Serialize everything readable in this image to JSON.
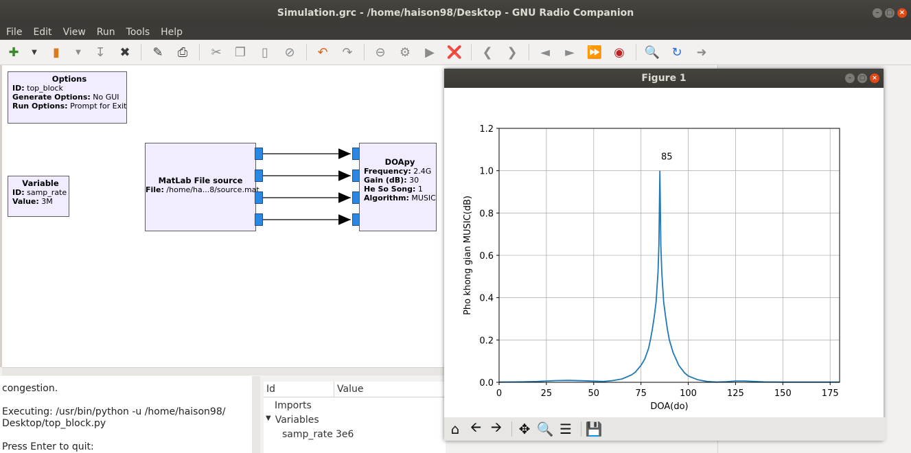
{
  "window": {
    "title": "Simulation.grc - /home/haison98/Desktop - GNU Radio Companion"
  },
  "menu": [
    "File",
    "Edit",
    "View",
    "Run",
    "Tools",
    "Help"
  ],
  "blocks": {
    "options": {
      "title": "Options",
      "id_label": "ID:",
      "id_value": "top_block",
      "gen_label": "Generate Options:",
      "gen_value": "No GUI",
      "run_label": "Run Options:",
      "run_value": "Prompt for Exit"
    },
    "variable": {
      "title": "Variable",
      "id_label": "ID:",
      "id_value": "samp_rate",
      "val_label": "Value:",
      "val_value": "3M"
    },
    "matlab": {
      "title": "MatLab File source",
      "file_label": "File:",
      "file_value": "/home/ha...8/source.mat"
    },
    "doapy": {
      "title": "DOApy",
      "freq_label": "Frequency:",
      "freq_value": "2.4G",
      "gain_label": "Gain (dB):",
      "gain_value": "30",
      "heso_label": "He So Song:",
      "heso_value": "1",
      "algo_label": "Algorithm:",
      "algo_value": "MUSIC"
    }
  },
  "console": {
    "line1": "congestion.",
    "line2": "Executing: /usr/bin/python -u /home/haison98/",
    "line3": "Desktop/top_block.py",
    "line4": "Press Enter to quit:"
  },
  "vars_panel": {
    "col_id": "Id",
    "col_value": "Value",
    "imports": "Imports",
    "variables": "Variables",
    "row_name": "samp_rate",
    "row_value": "3e6"
  },
  "figure": {
    "title": "Figure 1"
  },
  "chart_data": {
    "type": "line",
    "xlabel": "DOA(do)",
    "ylabel": "Pho khong gian MUSIC(dB)",
    "xlim": [
      0,
      180
    ],
    "ylim": [
      0,
      1.2
    ],
    "xticks": [
      0,
      25,
      50,
      75,
      100,
      125,
      150,
      175
    ],
    "yticks": [
      0.0,
      0.2,
      0.4,
      0.6,
      0.8,
      1.0,
      1.2
    ],
    "grid": true,
    "annotation": {
      "text": "85",
      "x": 85,
      "y": 1.0
    },
    "color": "#1f77b4",
    "x": [
      0,
      10,
      20,
      25,
      30,
      37,
      45,
      55,
      60,
      65,
      70,
      72,
      75,
      77,
      79,
      80,
      81,
      82,
      83,
      84,
      84.5,
      85,
      85.5,
      86,
      87,
      88,
      89,
      90,
      92,
      95,
      98,
      100,
      105,
      110,
      115,
      120,
      125,
      130,
      135,
      140,
      150,
      160,
      170,
      180
    ],
    "y": [
      0.001,
      0.002,
      0.004,
      0.006,
      0.008,
      0.009,
      0.007,
      0.004,
      0.008,
      0.016,
      0.035,
      0.048,
      0.08,
      0.11,
      0.16,
      0.2,
      0.25,
      0.31,
      0.38,
      0.52,
      0.65,
      1.0,
      0.65,
      0.52,
      0.38,
      0.31,
      0.25,
      0.2,
      0.14,
      0.08,
      0.045,
      0.03,
      0.012,
      0.004,
      0.001,
      0.003,
      0.006,
      0.006,
      0.004,
      0.002,
      0.001,
      0.001,
      0.001,
      0.001
    ]
  }
}
